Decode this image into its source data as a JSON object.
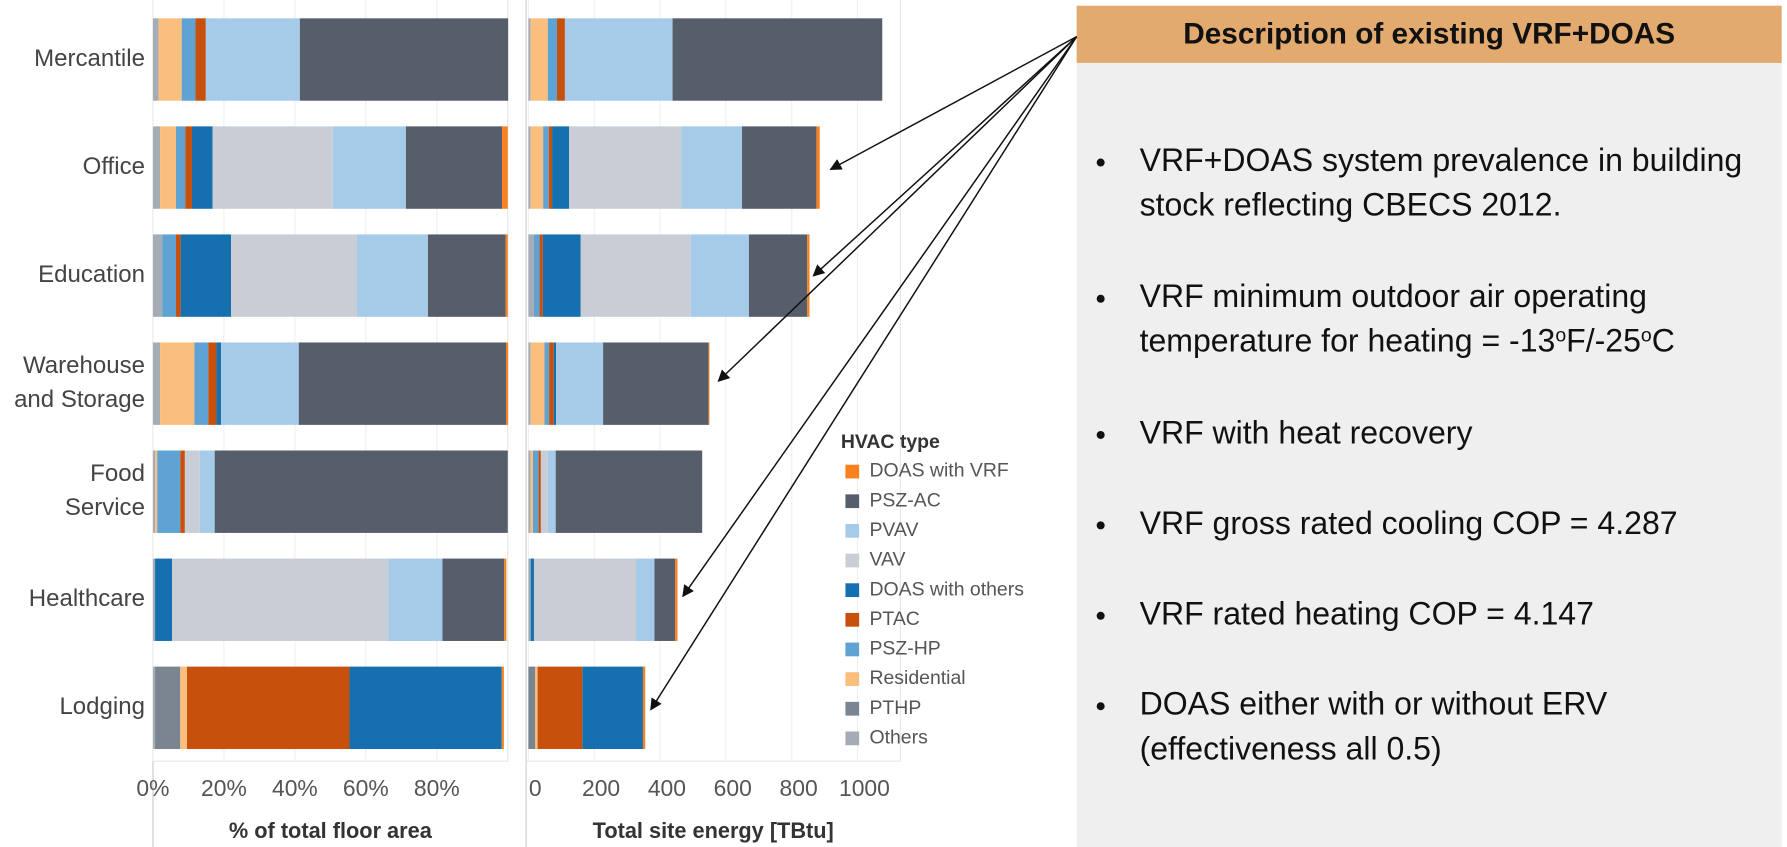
{
  "chart_data": [
    {
      "type": "bar",
      "orientation": "horizontal",
      "stacked": true,
      "categories": [
        "Mercantile",
        "Office",
        "Education",
        [
          "Warehouse",
          "and Storage"
        ],
        [
          "Food",
          "Service"
        ],
        "Healthcare",
        "Lodging"
      ],
      "xlabel": "% of total floor area",
      "xlim": [
        0,
        100
      ],
      "xticks": [
        {
          "value": 0,
          "label": "0%"
        },
        {
          "value": 20,
          "label": "20%"
        },
        {
          "value": 40,
          "label": "40%"
        },
        {
          "value": 60,
          "label": "60%"
        },
        {
          "value": 80,
          "label": "80%"
        }
      ],
      "series": [
        {
          "color": "#a5acb5",
          "values": [
            1.6,
            2,
            2.6,
            2,
            0.6,
            0.6,
            0.6
          ]
        },
        {
          "color": "#7b8491",
          "values": [
            0,
            0,
            0,
            0,
            0,
            0,
            7.1
          ]
        },
        {
          "color": "#fbbf7d",
          "values": [
            6.5,
            4.5,
            0,
            9.7,
            0.6,
            0,
            1.9
          ]
        },
        {
          "color": "#5fa2d4",
          "values": [
            3.9,
            2.6,
            3.9,
            3.9,
            6.5,
            0,
            0
          ]
        },
        {
          "color": "#c7510c",
          "values": [
            2.9,
            1.9,
            1.3,
            2.3,
            1.3,
            0,
            45.8
          ]
        },
        {
          "color": "#1670b0",
          "values": [
            0,
            5.8,
            14.2,
            1.3,
            0,
            4.8,
            42.9
          ]
        },
        {
          "color": "#c9ced6",
          "values": [
            0,
            33.9,
            35.5,
            0,
            4.2,
            61,
            0
          ]
        },
        {
          "color": "#a6cbe8",
          "values": [
            26.5,
            20.6,
            20,
            21.9,
            4.2,
            15.2,
            0
          ]
        },
        {
          "color": "#575e6b",
          "values": [
            58.7,
            27.1,
            21.9,
            58.4,
            82.6,
            17.4,
            0
          ]
        },
        {
          "color": "#f5811f",
          "values": [
            0,
            1.6,
            0.6,
            0.6,
            0,
            0.6,
            0.6
          ]
        }
      ]
    },
    {
      "type": "bar",
      "orientation": "horizontal",
      "stacked": true,
      "xlabel": "Total site energy [TBtu]",
      "xlim": [
        0,
        1130
      ],
      "xticks": [
        0,
        200,
        400,
        600,
        800,
        1000
      ],
      "legend_title": "HVAC type",
      "series": [
        {
          "name": "Others",
          "color": "#a5acb5",
          "values": [
            7,
            7,
            17,
            7,
            7,
            7,
            0
          ]
        },
        {
          "name": "PTHP",
          "color": "#7b8491",
          "values": [
            0,
            0,
            0,
            0,
            0,
            0,
            21
          ]
        },
        {
          "name": "Residential",
          "color": "#fbbf7d",
          "values": [
            52,
            38,
            0,
            42,
            7,
            0,
            7
          ]
        },
        {
          "name": "PSZ-HP",
          "color": "#5fa2d4",
          "values": [
            28,
            17,
            17,
            14,
            17,
            0,
            0
          ]
        },
        {
          "name": "PTAC",
          "color": "#c7510c",
          "values": [
            24,
            10,
            10,
            14,
            7,
            0,
            136
          ]
        },
        {
          "name": "DOAS with others",
          "color": "#1670b0",
          "values": [
            0,
            52,
            115,
            7,
            0,
            10,
            184
          ]
        },
        {
          "name": "VAV",
          "color": "#c9ced6",
          "values": [
            0,
            341,
            334,
            0,
            21,
            310,
            0
          ]
        },
        {
          "name": "PVAV",
          "color": "#a6cbe8",
          "values": [
            327,
            184,
            177,
            143,
            24,
            56,
            0
          ]
        },
        {
          "name": "PSZ-AC",
          "color": "#575e6b",
          "values": [
            637,
            226,
            177,
            320,
            445,
            63,
            0
          ]
        },
        {
          "name": "DOAS with VRF",
          "color": "#f5811f",
          "values": [
            0,
            10,
            7,
            3,
            0,
            7,
            7
          ]
        }
      ]
    }
  ],
  "panel": {
    "title": "Description of existing VRF+DOAS",
    "bullets": [
      [
        "VRF+DOAS system prevalence in building",
        "stock reflecting CBECS 2012."
      ],
      [
        "VRF minimum outdoor air operating",
        [
          "temperature for heating = -13",
          "o",
          "F/-25",
          "o",
          "C"
        ]
      ],
      [
        "VRF with heat recovery"
      ],
      [
        "VRF gross rated cooling COP = 4.287"
      ],
      [
        "VRF rated heating COP = 4.147"
      ],
      [
        "DOAS either with or without ERV",
        "(effectiveness all 0.5)"
      ]
    ]
  }
}
